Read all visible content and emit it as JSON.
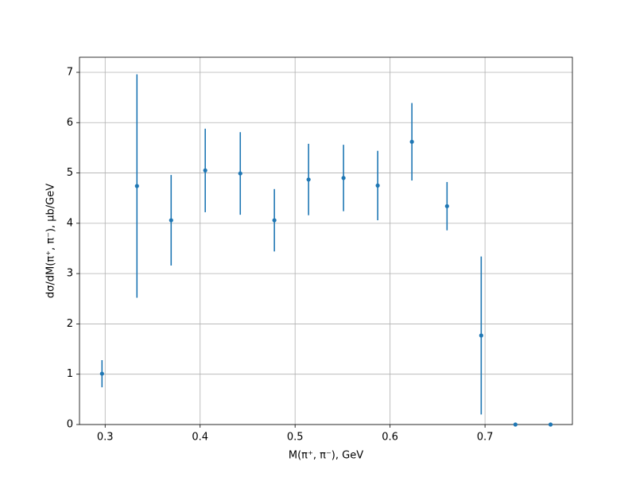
{
  "chart_data": {
    "type": "errorbar",
    "xlabel": "M(π⁺, π⁻), GeV",
    "ylabel": "dσ/dM(π⁺, π⁻), μb/GeV",
    "series": [
      {
        "color": "#1f77b4",
        "x": [
          0.2967,
          0.3335,
          0.3695,
          0.4054,
          0.4423,
          0.4782,
          0.5142,
          0.551,
          0.587,
          0.623,
          0.66,
          0.696,
          0.732,
          0.769
        ],
        "values": [
          1.01,
          4.74,
          4.06,
          5.05,
          4.99,
          4.06,
          4.87,
          4.9,
          4.75,
          5.62,
          4.34,
          1.77,
          0,
          0
        ],
        "errors": [
          0.27,
          2.22,
          0.9,
          0.83,
          0.82,
          0.62,
          0.71,
          0.66,
          0.69,
          0.77,
          0.48,
          1.57,
          0,
          0
        ]
      }
    ],
    "xlim": [
      0.273,
      0.792
    ],
    "xticks": [
      0.3,
      0.4,
      0.5,
      0.6,
      0.7
    ],
    "ylim": [
      0,
      7.3
    ],
    "yticks": [
      0,
      1,
      2,
      3,
      4,
      5,
      6,
      7
    ],
    "grid": true
  }
}
